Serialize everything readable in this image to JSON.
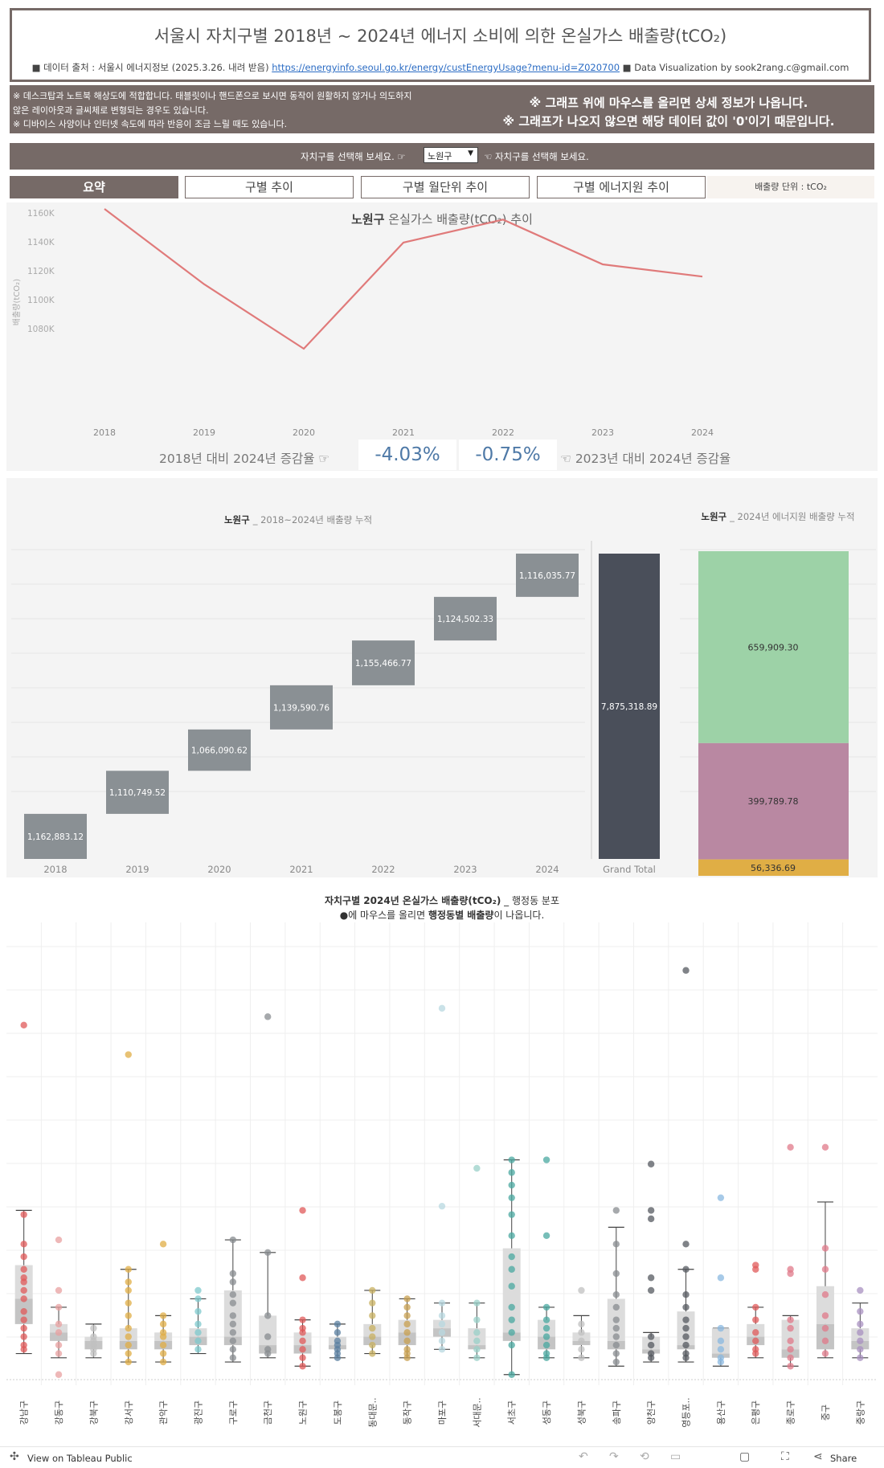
{
  "header": {
    "title": "서울시 자치구별 2018년 ~ 2024년 에너지 소비에 의한 온실가스 배출량(tCO₂)",
    "source_label": "■ 데이터 출처 : 서울시 에너지정보 (2025.3.26. 내려 받음)",
    "source_url": "https://energyinfo.seoul.go.kr/energy/custEnergyUsage?menu-id=Z020700",
    "credit": "■ Data Visualization by sook2rang.c@gmail.com"
  },
  "notes": {
    "left_1": "※ 데스크탑과 노트북 해상도에 적합합니다. 태블릿이나 핸드폰으로 보시면 동작이 원활하지 않거나 의도하지",
    "left_2": "않은 레이아웃과 글씨체로 변형되는 경우도 있습니다.",
    "left_3": "※ 디바이스 사양이나 인터넷 속도에 따라 반응이 조금 느릴 때도 있습니다.",
    "right_1": "※ 그래프 위에 마우스를 올리면 상세 정보가 나옵니다.",
    "right_2": "※ 그래프가 나오지 않으면 해당 데이터 값이 '0'이기 때문입니다."
  },
  "selector": {
    "hint_left": "자치구를 선택해 보세요. ☞",
    "selected": "노원구",
    "hint_right": "☜ 자치구를 선택해 보세요."
  },
  "tabs": [
    "요약",
    "구별 추이",
    "구별 월단위 추이",
    "구별 에너지원 추이"
  ],
  "unit_label": "배출량 단위 : tCO₂",
  "growth": {
    "label_left": "2018년 대비 2024년 증감율 ☞",
    "value_left": "-4.03%",
    "value_right": "-0.75%",
    "label_right": "☜ 2023년 대비 2024년 증감율"
  },
  "footer": {
    "view_label": "View on Tableau Public",
    "share_label": "Share"
  },
  "colors": {
    "header_brown": "#766a67",
    "line": "#e07a7a",
    "waterfall_bar": "#8a9094",
    "total_bar": "#4a4f5a",
    "energy_green": "#9dd2a7",
    "energy_purple": "#b988a2",
    "energy_yellow": "#e0ae45"
  },
  "chart_data": [
    {
      "type": "line",
      "title_district": "노원구",
      "title": "온실가스 배출량(tCO₂) 추이",
      "ylabel": "배출량(tCO₂)",
      "x": [
        "2018",
        "2019",
        "2020",
        "2021",
        "2022",
        "2023",
        "2024"
      ],
      "y": [
        1162883.12,
        1110749.52,
        1066090.62,
        1139590.76,
        1155466.77,
        1124502.33,
        1116035.77
      ],
      "yticks": [
        "1080K",
        "1100K",
        "1120K",
        "1140K",
        "1160K"
      ],
      "ylim": [
        1060000,
        1170000
      ],
      "grid": false
    },
    {
      "type": "bar",
      "subtype": "waterfall",
      "title_district": "노원구",
      "title": "_ 2018~2024년 배출량 누적",
      "categories": [
        "2018",
        "2019",
        "2020",
        "2021",
        "2022",
        "2023",
        "2024"
      ],
      "values": [
        1162883.12,
        1110749.52,
        1066090.62,
        1139590.76,
        1155466.77,
        1124502.33,
        1116035.77
      ],
      "labels": [
        "1,162,883.12",
        "1,110,749.52",
        "1,066,090.62",
        "1,139,590.76",
        "1,155,466.77",
        "1,124,502.33",
        "1,116,035.77"
      ],
      "total_label": "Grand Total",
      "total": 7875318.89,
      "total_display": "7,875,318.89"
    },
    {
      "type": "bar",
      "subtype": "stacked",
      "title_district": "노원구",
      "title": "_ 2024년 에너지원 배출량 누적",
      "values": [
        659909.3,
        399789.78,
        56336.69
      ],
      "labels": [
        "659,909.30",
        "399,789.78",
        "56,336.69"
      ],
      "colors": [
        "#9dd2a7",
        "#b988a2",
        "#e0ae45"
      ]
    },
    {
      "type": "scatter",
      "subtype": "boxplot",
      "title_bold_1": "자치구별 2024년 온실가스 배출량(tCO₂)",
      "title_rest": " _ 행정동 분포",
      "subtitle_pre": "●에 마우스를 올리면 ",
      "subtitle_bold": "행정동별 배출량",
      "subtitle_post": "이 나옵니다.",
      "ylim": [
        0,
        1
      ],
      "categories": [
        "강남구",
        "강동구",
        "강북구",
        "강서구",
        "관악구",
        "광진구",
        "구로구",
        "금천구",
        "노원구",
        "도봉구",
        "동대문..",
        "동작구",
        "마포구",
        "서대문..",
        "서초구",
        "성동구",
        "성북구",
        "송파구",
        "양천구",
        "영등포..",
        "용산구",
        "은평구",
        "종로구",
        "중구",
        "중랑구"
      ],
      "colors": [
        "#e05a5a",
        "#e8a0a0",
        "#c0c0c0",
        "#e0ae45",
        "#e0ae45",
        "#7ec8cc",
        "#888c90",
        "#888c90",
        "#e05a5a",
        "#5a7fa0",
        "#c8b060",
        "#c8a050",
        "#b8d8e0",
        "#9ad0c8",
        "#4aa8a0",
        "#4aa8a0",
        "#c0c0c0",
        "#888c90",
        "#555a60",
        "#555a60",
        "#8ab8e0",
        "#e05a5a",
        "#e07a8a",
        "#e07a8a",
        "#a890c0"
      ],
      "boxes": [
        {
          "lo": 0.06,
          "q1": 0.13,
          "med": 0.19,
          "q3": 0.27,
          "hi": 0.4
        },
        {
          "lo": 0.05,
          "q1": 0.09,
          "med": 0.11,
          "q3": 0.13,
          "hi": 0.17
        },
        {
          "lo": 0.05,
          "q1": 0.07,
          "med": 0.09,
          "q3": 0.1,
          "hi": 0.13
        },
        {
          "lo": 0.04,
          "q1": 0.07,
          "med": 0.09,
          "q3": 0.12,
          "hi": 0.26
        },
        {
          "lo": 0.04,
          "q1": 0.07,
          "med": 0.09,
          "q3": 0.11,
          "hi": 0.15
        },
        {
          "lo": 0.06,
          "q1": 0.08,
          "med": 0.1,
          "q3": 0.12,
          "hi": 0.19
        },
        {
          "lo": 0.04,
          "q1": 0.08,
          "med": 0.1,
          "q3": 0.21,
          "hi": 0.33
        },
        {
          "lo": 0.05,
          "q1": 0.06,
          "med": 0.08,
          "q3": 0.15,
          "hi": 0.3
        },
        {
          "lo": 0.03,
          "q1": 0.06,
          "med": 0.08,
          "q3": 0.11,
          "hi": 0.14
        },
        {
          "lo": 0.05,
          "q1": 0.07,
          "med": 0.08,
          "q3": 0.1,
          "hi": 0.13
        },
        {
          "lo": 0.06,
          "q1": 0.08,
          "med": 0.1,
          "q3": 0.13,
          "hi": 0.21
        },
        {
          "lo": 0.05,
          "q1": 0.08,
          "med": 0.11,
          "q3": 0.14,
          "hi": 0.19
        },
        {
          "lo": 0.07,
          "q1": 0.1,
          "med": 0.12,
          "q3": 0.14,
          "hi": 0.18
        },
        {
          "lo": 0.05,
          "q1": 0.07,
          "med": 0.08,
          "q3": 0.12,
          "hi": 0.18
        },
        {
          "lo": 0.01,
          "q1": 0.09,
          "med": 0.11,
          "q3": 0.31,
          "hi": 0.52
        },
        {
          "lo": 0.05,
          "q1": 0.07,
          "med": 0.1,
          "q3": 0.14,
          "hi": 0.17
        },
        {
          "lo": 0.05,
          "q1": 0.08,
          "med": 0.09,
          "q3": 0.11,
          "hi": 0.15
        },
        {
          "lo": 0.03,
          "q1": 0.07,
          "med": 0.09,
          "q3": 0.19,
          "hi": 0.36
        },
        {
          "lo": 0.04,
          "q1": 0.06,
          "med": 0.07,
          "q3": 0.1,
          "hi": 0.11
        },
        {
          "lo": 0.04,
          "q1": 0.07,
          "med": 0.08,
          "q3": 0.16,
          "hi": 0.26
        },
        {
          "lo": 0.03,
          "q1": 0.05,
          "med": 0.06,
          "q3": 0.12,
          "hi": 0.12
        },
        {
          "lo": 0.05,
          "q1": 0.08,
          "med": 0.1,
          "q3": 0.13,
          "hi": 0.17
        },
        {
          "lo": 0.03,
          "q1": 0.05,
          "med": 0.07,
          "q3": 0.14,
          "hi": 0.15
        },
        {
          "lo": 0.05,
          "q1": 0.07,
          "med": 0.13,
          "q3": 0.22,
          "hi": 0.42
        },
        {
          "lo": 0.05,
          "q1": 0.07,
          "med": 0.09,
          "q3": 0.12,
          "hi": 0.18
        }
      ],
      "points": [
        [
          0.84,
          0.39,
          0.32,
          0.29,
          0.26,
          0.24,
          0.23,
          0.21,
          0.19,
          0.16,
          0.14,
          0.12,
          0.1,
          0.08,
          0.07
        ],
        [
          0.33,
          0.21,
          0.17,
          0.13,
          0.11,
          0.08,
          0.06,
          0.01
        ],
        [
          0.12,
          0.1,
          0.09,
          0.08,
          0.07,
          0.06
        ],
        [
          0.77,
          0.26,
          0.23,
          0.21,
          0.18,
          0.15,
          0.12,
          0.1,
          0.08,
          0.06,
          0.04
        ],
        [
          0.32,
          0.15,
          0.13,
          0.11,
          0.1,
          0.08,
          0.06,
          0.04
        ],
        [
          0.21,
          0.19,
          0.16,
          0.13,
          0.11,
          0.09,
          0.07
        ],
        [
          0.33,
          0.25,
          0.23,
          0.2,
          0.18,
          0.15,
          0.13,
          0.11,
          0.09,
          0.07,
          0.05
        ],
        [
          0.86,
          0.3,
          0.15,
          0.1,
          0.07,
          0.06
        ],
        [
          0.4,
          0.24,
          0.14,
          0.12,
          0.11,
          0.09,
          0.07,
          0.05,
          0.03
        ],
        [
          0.13,
          0.11,
          0.09,
          0.08,
          0.07,
          0.06,
          0.05
        ],
        [
          0.21,
          0.18,
          0.15,
          0.12,
          0.1,
          0.08,
          0.06
        ],
        [
          0.19,
          0.17,
          0.15,
          0.13,
          0.11,
          0.09,
          0.07,
          0.06,
          0.05
        ],
        [
          0.88,
          0.41,
          0.18,
          0.15,
          0.13,
          0.11,
          0.09,
          0.07
        ],
        [
          0.5,
          0.18,
          0.14,
          0.11,
          0.09,
          0.07,
          0.05
        ],
        [
          0.52,
          0.49,
          0.46,
          0.43,
          0.39,
          0.34,
          0.29,
          0.26,
          0.22,
          0.17,
          0.14,
          0.11,
          0.08,
          0.01
        ],
        [
          0.52,
          0.34,
          0.17,
          0.14,
          0.12,
          0.1,
          0.08,
          0.06,
          0.05
        ],
        [
          0.21,
          0.13,
          0.11,
          0.09,
          0.07,
          0.05
        ],
        [
          0.4,
          0.32,
          0.25,
          0.2,
          0.17,
          0.14,
          0.12,
          0.1,
          0.08,
          0.06,
          0.04
        ],
        [
          0.51,
          0.4,
          0.38,
          0.24,
          0.21,
          0.1,
          0.08,
          0.06,
          0.05
        ],
        [
          0.97,
          0.32,
          0.26,
          0.2,
          0.17,
          0.14,
          0.12,
          0.1,
          0.08,
          0.06,
          0.05
        ],
        [
          0.43,
          0.24,
          0.12,
          0.09,
          0.07,
          0.05,
          0.04
        ],
        [
          0.27,
          0.26,
          0.17,
          0.14,
          0.11,
          0.09,
          0.07,
          0.06
        ],
        [
          0.55,
          0.26,
          0.25,
          0.14,
          0.12,
          0.09,
          0.07,
          0.05,
          0.03
        ],
        [
          0.55,
          0.31,
          0.26,
          0.2,
          0.15,
          0.12,
          0.09,
          0.06
        ],
        [
          0.21,
          0.16,
          0.13,
          0.11,
          0.09,
          0.07,
          0.05
        ]
      ]
    }
  ]
}
